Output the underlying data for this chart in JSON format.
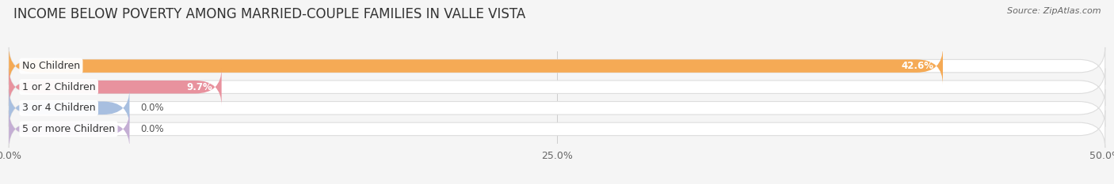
{
  "title": "INCOME BELOW POVERTY AMONG MARRIED-COUPLE FAMILIES IN VALLE VISTA",
  "source": "Source: ZipAtlas.com",
  "categories": [
    "No Children",
    "1 or 2 Children",
    "3 or 4 Children",
    "5 or more Children"
  ],
  "values": [
    42.6,
    9.7,
    0.0,
    0.0
  ],
  "bar_colors": [
    "#f5aa55",
    "#e8929e",
    "#a8bfe0",
    "#c4aed4"
  ],
  "xlim": [
    0,
    50
  ],
  "xticks": [
    0,
    25,
    50
  ],
  "xtick_labels": [
    "0.0%",
    "25.0%",
    "50.0%"
  ],
  "background_color": "#f5f5f5",
  "bar_bg_color": "#ebebeb",
  "bar_outline_color": "#dddddd",
  "title_fontsize": 12,
  "tick_fontsize": 9,
  "label_fontsize": 9,
  "value_fontsize": 8.5,
  "min_bar_width": 5.5
}
